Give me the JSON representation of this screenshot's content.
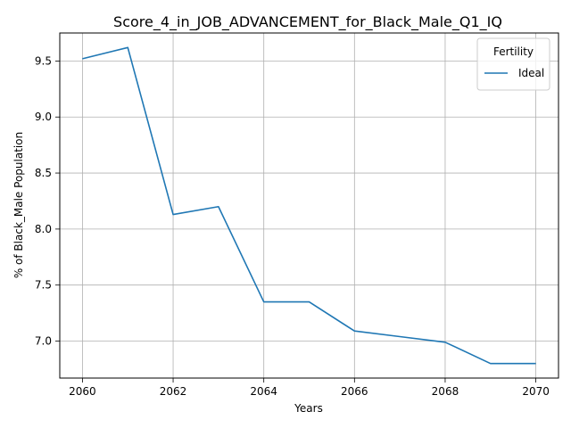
{
  "chart_data": {
    "type": "line",
    "title": "Score_4_in_JOB_ADVANCEMENT_for_Black_Male_Q1_IQ",
    "xlabel": "Years",
    "ylabel": "% of Black_Male Population",
    "x": [
      2060,
      2061,
      2062,
      2063,
      2064,
      2065,
      2066,
      2067,
      2068,
      2069,
      2070
    ],
    "series": [
      {
        "name": "Ideal",
        "color": "#1f77b4",
        "values": [
          9.52,
          9.62,
          8.13,
          8.2,
          7.35,
          7.35,
          7.09,
          7.04,
          6.99,
          6.8,
          6.8
        ]
      }
    ],
    "xlim": [
      2059.5,
      2070.5
    ],
    "ylim": [
      6.67,
      9.75
    ],
    "xticks": [
      2060,
      2062,
      2064,
      2066,
      2068,
      2070
    ],
    "xtick_labels": [
      "2060",
      "2062",
      "2064",
      "2066",
      "2068",
      "2070"
    ],
    "yticks": [
      7.0,
      7.5,
      8.0,
      8.5,
      9.0,
      9.5
    ],
    "ytick_labels": [
      "7.0",
      "7.5",
      "8.0",
      "8.5",
      "9.0",
      "9.5"
    ],
    "grid": true,
    "legend": {
      "title": "Fertility",
      "position": "top-right"
    }
  }
}
